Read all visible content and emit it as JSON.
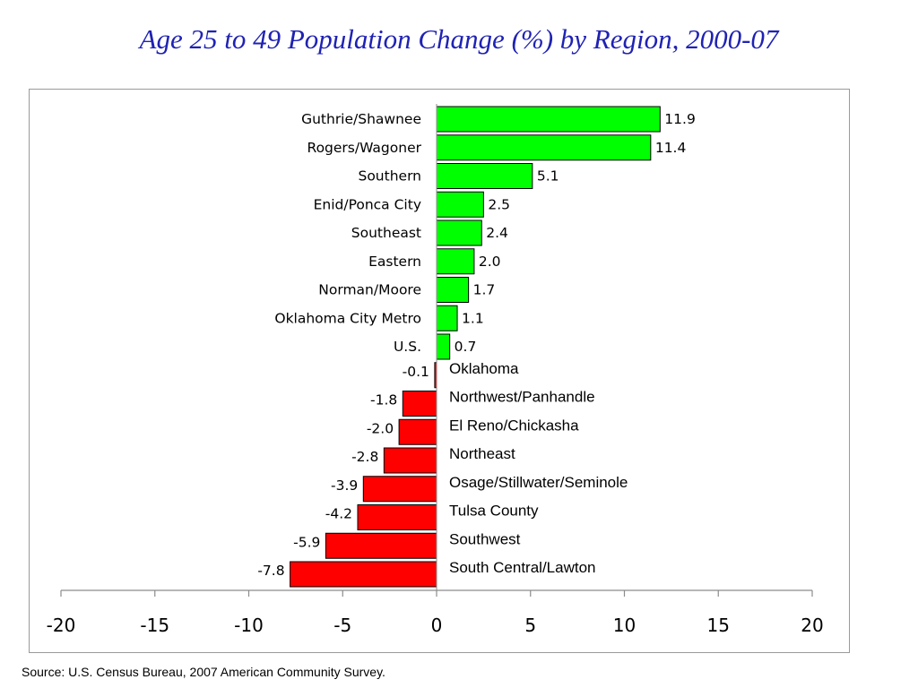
{
  "title": "Age 25 to 49 Population Change (%) by Region, 2000-07",
  "source": "Source: U.S. Census Bureau, 2007 American Community Survey.",
  "colors": {
    "positive": "#00ff00",
    "negative": "#ff0000",
    "bar_edge": "#000000",
    "title": "#1f22b3"
  },
  "chart_data": {
    "type": "bar",
    "orientation": "horizontal",
    "title": "Age 25 to 49 Population Change (%) by Region, 2000-07",
    "xlabel": "",
    "ylabel": "",
    "xlim": [
      -20,
      20
    ],
    "xticks": [
      -20,
      -15,
      -10,
      -5,
      0,
      5,
      10,
      15,
      20
    ],
    "xtick_labels": [
      "-20",
      "-15",
      "-10",
      "-5",
      "0",
      "5",
      "10",
      "15",
      "20"
    ],
    "grid": false,
    "legend": "none",
    "categories": [
      "Guthrie/Shawnee",
      "Rogers/Wagoner",
      "Southern",
      "Enid/Ponca City",
      "Southeast",
      "Eastern",
      "Norman/Moore",
      "Oklahoma City Metro",
      "U.S.",
      "Oklahoma",
      "Northwest/Panhandle",
      "El Reno/Chickasha",
      "Northeast",
      "Osage/Stillwater/Seminole",
      "Tulsa County",
      "Southwest",
      "South Central/Lawton"
    ],
    "values": [
      11.9,
      11.4,
      5.1,
      2.5,
      2.4,
      2.0,
      1.7,
      1.1,
      0.7,
      -0.1,
      -1.8,
      -2.0,
      -2.8,
      -3.9,
      -4.2,
      -5.9,
      -7.8
    ],
    "value_labels": [
      "11.9",
      "11.4",
      "5.1",
      "2.5",
      "2.4",
      "2.0",
      "1.7",
      "1.1",
      "0.7",
      "-0.1",
      "-1.8",
      "-2.0",
      "-2.8",
      "-3.9",
      "-4.2",
      "-5.9",
      "-7.8"
    ]
  }
}
